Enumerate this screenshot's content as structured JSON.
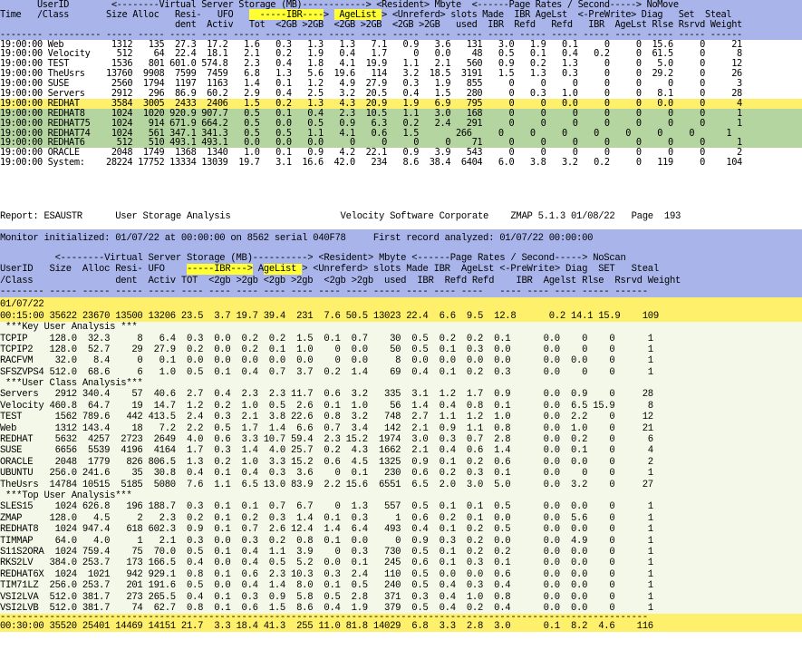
{
  "section1": {
    "header": [
      {
        "text": "       UserID        <--------Virtual Server Storage (MB)------------> <Resident> Mbyte  <------Page Rates / Second-----> NoMove",
        "hl": []
      },
      {
        "text": "Time   /Class       Size Alloc   Resi-   UFO     -----IBR---->  AgeList > <Unreferd> slots Made  IBR AgeLst  <-PreWrite> Diag   Set  Steal",
        "hl": [
          {
            "start": 47,
            "end": 61
          },
          {
            "start": 63,
            "end": 72
          }
        ]
      },
      {
        "text": "                                 dent  Activ   Tot  <2GB >2GB  <2GB >2GB  <2GB >2GB   used  IBR  Refd   Refd   IBR  AgeLst Rlse Rsrvd Weight",
        "hl": []
      },
      {
        "text": "-------- ---------- ----- ----- ----- ----- ----- ----- ----- ----- ----- ----- ----- ----- ----- ----- ----- ----- ----- ----- ----- ------",
        "hl": []
      }
    ],
    "rows": [
      {
        "cls": "",
        "text": "19:00:00 Web         1312   135  27.3  17.2   1.6   0.3   1.3   1.3   7.1   0.9   3.6   131   3.0   1.9   0.1     0     0  15.6     0     21"
      },
      {
        "cls": "",
        "text": "19:00:00 Velocity     512    64  22.4  18.1   2.1   0.2   1.9   0.4   1.7     0   0.0    48   0.5   0.1   0.4   0.2     0  61.5     0      8"
      },
      {
        "cls": "",
        "text": "19:00:00 TEST        1536   801 601.0 574.8   2.3   0.4   1.8   4.1  19.9   1.1   2.1   560   0.9   0.2   1.3     0     0   5.0     0     12"
      },
      {
        "cls": "",
        "text": "19:00:00 TheUsrs    13760  9908  7599  7459   6.8   1.3   5.6  19.6   114   3.2  18.5  3191   1.5   1.3   0.3     0     0  29.2     0     26"
      },
      {
        "cls": "",
        "text": "19:00:00 SUSE        2560  1794  1197  1163   1.4   0.1   1.2   4.9  27.9   0.3   1.9   855     0     0     0     0     0     0     0      3"
      },
      {
        "cls": "",
        "text": "19:00:00 Servers     2912   296  86.9  60.2   2.9   0.4   2.5   3.2  20.5   0.4   1.5   280     0   0.3   1.0     0     0   8.1     0     28"
      },
      {
        "cls": "hl-y",
        "text": "19:00:00 REDHAT      3584  3005  2433  2406   1.5   0.2   1.3   4.3  20.9   1.9   6.9   795     0     0   0.0     0     0   0.0     0      4"
      },
      {
        "cls": "hl-g",
        "text": "19:00:00 REDHAT8     1024  1020 920.9 907.7   0.5   0.1   0.4   2.3  10.5   1.1   3.0   168     0     0     0     0     0     0     0      1"
      },
      {
        "cls": "hl-g",
        "text": "19:00:00 REDHAT75    1024   914 671.9 664.2   0.5   0.0   0.5   0.9   6.3   0.2   2.4   291     0     0     0     0     0     0     0      1"
      },
      {
        "cls": "hl-g",
        "text": "19:00:00 REDHAT74    1024   561 347.1 341.3   0.5   0.5   1.1   4.1   0.6   1.5       266     0     0     0     0     0     0     0      1"
      },
      {
        "cls": "hl-g",
        "text": "19:00:00 REDHAT6      512   510 493.1 493.1   0.0   0.0   0.0     0     0     0     0    71     0     0     0     0     0     0     0      1"
      },
      {
        "cls": "",
        "text": "19:00:00 ORACLE      2048  1749  1368  1340   1.0   0.1   0.9   4.2  22.1   0.9   3.9   543     0     0     0     0     0     0     0      2"
      },
      {
        "cls": "",
        "text": "19:00:00 System:    28224 17752 13334 13039  19.7   3.1  16.6  42.0   234   8.6  38.4  6404   6.0   3.8   3.2   0.2     0   119     0    104"
      }
    ]
  },
  "report": {
    "line": "Report: ESAUSTR      User Storage Analysis                    Velocity Software Corporate    ZMAP 5.1.3 01/08/22   Page  193"
  },
  "monitor": {
    "line": "Monitor initialized: 01/07/22 at 00:00:00 on 8562 serial 040F78     First record analyzed: 01/07/22 00:00:00"
  },
  "section2": {
    "header": [
      {
        "text": "          <--------Virtual Server Storage (MB)----------> <Resident> Mbyte <------Page Rates / Second-----> NoScan",
        "hl": []
      },
      {
        "text": "UserID   Size  Alloc Resi- UFO    -----IBR---> AgeList > <Unreferd> slots Made IBR  AgeLst <-PreWrite> Diag  SET   Steal",
        "hl": [
          {
            "start": 34,
            "end": 46
          },
          {
            "start": 48,
            "end": 55
          }
        ]
      },
      {
        "text": "/Class               dent  Activ TOT  <2gb >2gb <2gb >2gb  <2gb >2gb  used  IBR  Refd Refd    IBR  Agelst Rlse  Rsrvd Weight",
        "hl": []
      },
      {
        "text": "-------- ----- ----- ----- ----- ---- ---- ---- ---- ---- ---- ---- ----- ---- ---- ----   ---- ---- ---- ----- ------",
        "hl": []
      }
    ],
    "summary": [
      {
        "text": "01/07/22"
      },
      {
        "text": "00:15:00 35622 23670 13500 13206 23.5  3.7 19.7 39.4  231  7.6 50.5 13023 22.4  6.6  9.5  12.8      0.2 14.1 15.9    109"
      }
    ],
    "body": [
      " ***Key User Analysis ***",
      "TCPIP    128.0  32.3     8   6.4  0.3  0.0  0.2  0.2  1.5  0.1  0.7    30  0.5  0.2  0.2  0.1      0.0    0    0      1",
      "TCPIP2   128.0  52.7    29  27.9  0.2  0.0  0.2  0.1  1.0    0  0.0    50  0.5  0.1  0.3  0.0      0.0    0    0      1",
      "RACFVM    32.0   8.4     0   0.1  0.0  0.0  0.0  0.0  0.0    0  0.0     8  0.0  0.0  0.0  0.0      0.0  0.0    0      1",
      "SFSZVPS4 512.0  68.6     6   1.0  0.5  0.1  0.4  0.7  3.7  0.2  1.4    69  0.4  0.1  0.2  0.3      0.0    0    0      1",
      " ***User Class Analysis***",
      "Servers   2912 340.4    57  40.6  2.7  0.4  2.3  2.3 11.7  0.6  3.2   335  3.1  1.2  1.7  0.9      0.0  0.9    0     28",
      "Velocity 460.8  64.7    19  14.7  1.2  0.2  1.0  0.5  2.6  0.1  1.0    56  1.4  0.4  0.8  0.1      0.0  6.5 15.9      8",
      "TEST      1562 789.6   442 413.5  2.4  0.3  2.1  3.8 22.6  0.8  3.2   748  2.7  1.1  1.2  1.0      0.0  2.2    0     12",
      "Web       1312 143.4    18   7.2  2.2  0.5  1.7  1.4  6.6  0.7  3.4   142  2.1  0.9  1.1  0.8      0.0  1.0    0     21",
      "REDHAT    5632  4257  2723  2649  4.0  0.6  3.3 10.7 59.4  2.3 15.2  1974  3.0  0.3  0.7  2.8      0.0  0.2    0      6",
      "SUSE      6656  5539  4196  4164  1.7  0.3  1.4  4.0 25.7  0.2  4.3  1662  2.1  0.4  0.6  1.4      0.0  0.1    0      4",
      "ORACLE    2048  1779   826 806.5  1.3  0.2  1.0  3.3 15.2  0.6  4.5  1325  0.9  0.1  0.2  0.6      0.0  0.0    0      2",
      "UBUNTU   256.0 241.6    35  30.8  0.4  0.1  0.4  0.3  3.6    0  0.1   230  0.6  0.2  0.3  0.1      0.0    0    0      1",
      "TheUsrs  14784 10515  5185  5080  7.6  1.1  6.5 13.0 83.9  2.2 15.6  6551  6.5  2.0  3.0  5.0      0.0  3.2    0     27",
      " ***Top User Analysis***",
      "SLES15    1024 626.8   196 188.7  0.3  0.1  0.1  0.7  6.7    0  1.3   557  0.5  0.1  0.1  0.5      0.0  0.0    0      1",
      "ZMAP     128.0   4.5     2   2.3  0.2  0.1  0.2  0.3  1.4  0.1  0.3     1  0.6  0.2  0.1  0.0      0.0  5.6    0      1",
      "REDHAT8   1024 947.4   618 602.3  0.9  0.1  0.7  2.6 12.4  1.4  6.4   493  0.4  0.1  0.2  0.5      0.0  0.0    0      1",
      "TIMMAP    64.0   4.0     1   2.1  0.3  0.0  0.3  0.2  0.8  0.1  0.0     0  0.9  0.3  0.2  0.0      0.0  4.9    0      1",
      "S11S2ORA  1024 759.4    75  70.0  0.5  0.1  0.4  1.1  3.9    0  0.3   730  0.5  0.1  0.2  0.2      0.0  0.0    0      1",
      "RKS2LV   384.0 253.7   173 166.5  0.4  0.0  0.4  0.5  5.2  0.0  0.1   245  0.6  0.1  0.3  0.1      0.0  0.0    0      1",
      "REDHAT6X  1024  1021   942 929.1  0.8  0.1  0.6  2.3 10.3  0.3  2.4   110  0.5  0.0  0.0  0.6      0.0  0.0    0      1",
      "TIM71LZ  256.0 253.7   201 191.6  0.5  0.0  0.4  1.4  8.0  0.1  0.5   240  0.5  0.4  0.3  0.4      0.0  0.0    0      1",
      "VSI2LVA  512.0 381.7   273 265.5  0.4  0.1  0.3  0.9  5.8  0.5  2.8   371  0.3  0.4  1.0  0.8      0.0  0.0    0      1",
      "VSI2LVB  512.0 381.7    74  62.7  0.8  0.1  0.6  1.5  8.6  0.4  1.9   379  0.5  0.4  0.2  0.4      0.0  0.0    0      1"
    ],
    "divider": "----------------------------------------------------------------------------------------------------------------------",
    "footer": "00:30:00 35520 25401 14469 14151 21.7  3.3 18.4 41.3  255 11.0 81.8 14029  6.8  3.3  2.8  3.0      0.1  8.2  4.6    116"
  }
}
